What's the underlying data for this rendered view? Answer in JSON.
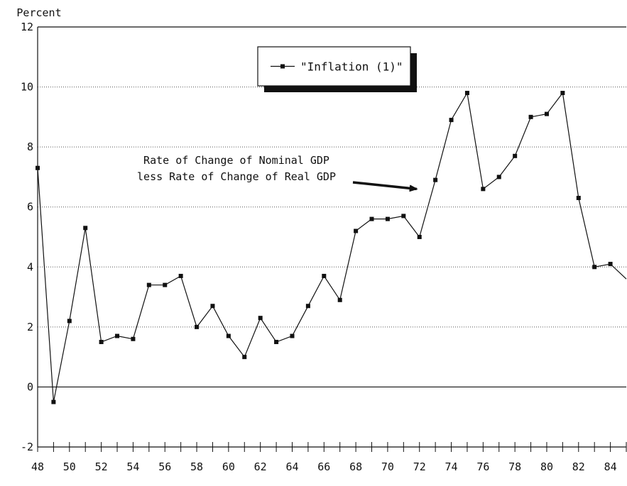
{
  "chart_data": {
    "type": "line",
    "ylabel": "Percent",
    "ylim": [
      -2,
      12
    ],
    "xlim": [
      48,
      85
    ],
    "y_ticks": [
      -2,
      0,
      2,
      4,
      6,
      8,
      10,
      12
    ],
    "x_tick_labels": [
      {
        "value": 48,
        "label": "48"
      },
      {
        "value": 50,
        "label": "50"
      },
      {
        "value": 52,
        "label": "52"
      },
      {
        "value": 54,
        "label": "54"
      },
      {
        "value": 56,
        "label": "56"
      },
      {
        "value": 58,
        "label": "58"
      },
      {
        "value": 60,
        "label": "60"
      },
      {
        "value": 62,
        "label": "62"
      },
      {
        "value": 64,
        "label": "64"
      },
      {
        "value": 66,
        "label": "66"
      },
      {
        "value": 68,
        "label": "68"
      },
      {
        "value": 70,
        "label": "70"
      },
      {
        "value": 72,
        "label": "72"
      },
      {
        "value": 74,
        "label": "74"
      },
      {
        "value": 76,
        "label": "76"
      },
      {
        "value": 78,
        "label": "78"
      },
      {
        "value": 80,
        "label": "80"
      },
      {
        "value": 82,
        "label": "82"
      },
      {
        "value": 84,
        "label": "84"
      }
    ],
    "grid": "horizontal-dotted",
    "legend": {
      "placement": "top-center",
      "entries": [
        "\"Inflation (1)\""
      ]
    },
    "series": [
      {
        "name": "\"Inflation (1)\"",
        "x": [
          48,
          49,
          50,
          51,
          52,
          53,
          54,
          55,
          56,
          57,
          58,
          59,
          60,
          61,
          62,
          63,
          64,
          65,
          66,
          67,
          68,
          69,
          70,
          71,
          72,
          73,
          74,
          75,
          76,
          77,
          78,
          79,
          80,
          81,
          82,
          83,
          84,
          85
        ],
        "y": [
          7.3,
          -0.5,
          2.2,
          5.3,
          1.5,
          1.7,
          1.6,
          3.4,
          3.4,
          3.7,
          2.0,
          2.7,
          1.7,
          1.0,
          2.3,
          1.5,
          1.7,
          2.7,
          3.7,
          2.9,
          5.2,
          5.6,
          5.6,
          5.7,
          5.0,
          6.9,
          8.9,
          9.8,
          6.6,
          7.0,
          7.7,
          9.0,
          9.1,
          9.8,
          6.3,
          4.0,
          4.1,
          3.6
        ]
      }
    ],
    "annotation": {
      "lines": [
        "Rate of Change of Nominal GDP",
        "less Rate of Change of Real GDP"
      ],
      "points_to": {
        "x": 72,
        "y": 6.6
      }
    }
  }
}
